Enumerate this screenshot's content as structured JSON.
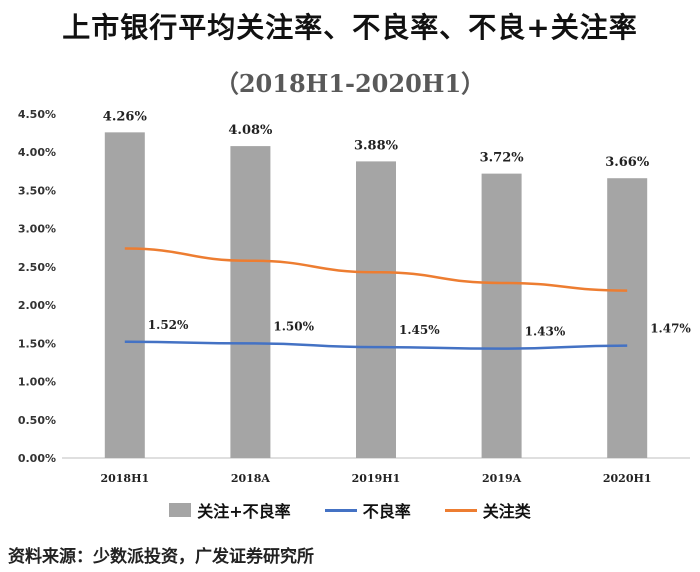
{
  "chart_data": {
    "type": "bar",
    "title": "上市银行平均关注率、不良率、不良+关注率",
    "subtitle": "（2018H1-2020H1）",
    "categories": [
      "2018H1",
      "2018A",
      "2019H1",
      "2019A",
      "2020H1"
    ],
    "series": [
      {
        "name": "关注+不良率",
        "type": "bar",
        "color": "#a5a5a5",
        "values": [
          4.26,
          4.08,
          3.88,
          3.72,
          3.66
        ],
        "labels": [
          "4.26%",
          "4.08%",
          "3.88%",
          "3.72%",
          "3.66%"
        ]
      },
      {
        "name": "不良率",
        "type": "line",
        "color": "#4472c4",
        "values": [
          1.52,
          1.5,
          1.45,
          1.43,
          1.47
        ],
        "labels": [
          "1.52%",
          "1.50%",
          "1.45%",
          "1.43%",
          "1.47%"
        ]
      },
      {
        "name": "关注类",
        "type": "line",
        "color": "#ed7d31",
        "values": [
          2.74,
          2.58,
          2.43,
          2.29,
          2.19
        ]
      }
    ],
    "yticks": [
      "0.00%",
      "0.50%",
      "1.00%",
      "1.50%",
      "2.00%",
      "2.50%",
      "3.00%",
      "3.50%",
      "4.00%",
      "4.50%"
    ],
    "ylim": [
      0,
      4.5
    ],
    "xlabel": "",
    "ylabel": "",
    "legend": "bottom"
  },
  "source": "资料来源：少数派投资，广发证券研究所"
}
